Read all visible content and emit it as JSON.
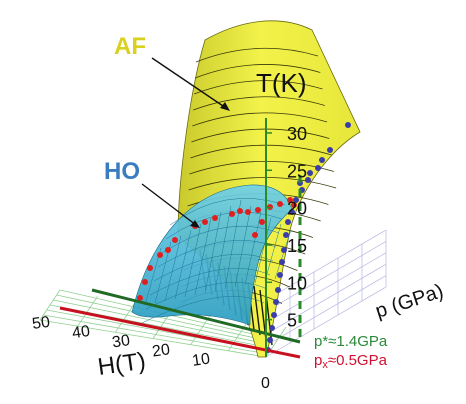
{
  "chart_data": {
    "type": "surface-3d",
    "title": "",
    "annotations": {
      "af": "AF",
      "ho": "HO",
      "p_star": "p*≈1.4GPa",
      "p_x": "px≈0.5GPa",
      "p_x_base": "p",
      "p_x_sub": "x",
      "p_x_rest": "≈0.5GPa"
    },
    "axes": {
      "z": {
        "label": "T(K)",
        "ticks": [
          "5",
          "10",
          "15",
          "20",
          "25",
          "30"
        ],
        "range": [
          0,
          32
        ]
      },
      "x": {
        "label": "H(T)",
        "ticks": [
          "0",
          "10",
          "20",
          "30",
          "40",
          "50"
        ],
        "range": [
          0,
          50
        ]
      },
      "y": {
        "label": "p (GPa)",
        "range": [
          0,
          2.5
        ]
      },
      "origin_label": "0"
    },
    "phases": [
      {
        "name": "AF",
        "color": "#e8e83a"
      },
      {
        "name": "HO",
        "color": "#3bb6d8"
      }
    ],
    "colors": {
      "af_surface": "#ebeb3c",
      "ho_surface": "#45b8d8",
      "points_blue": "#3b3ea8",
      "points_red": "#e02020",
      "line_green": "#2a8a2a",
      "line_red": "#d01020",
      "af_label": "#d9d020",
      "ho_label": "#3a7cc0",
      "p_star_label": "#2a8a3a",
      "p_x_label": "#d01030"
    }
  }
}
